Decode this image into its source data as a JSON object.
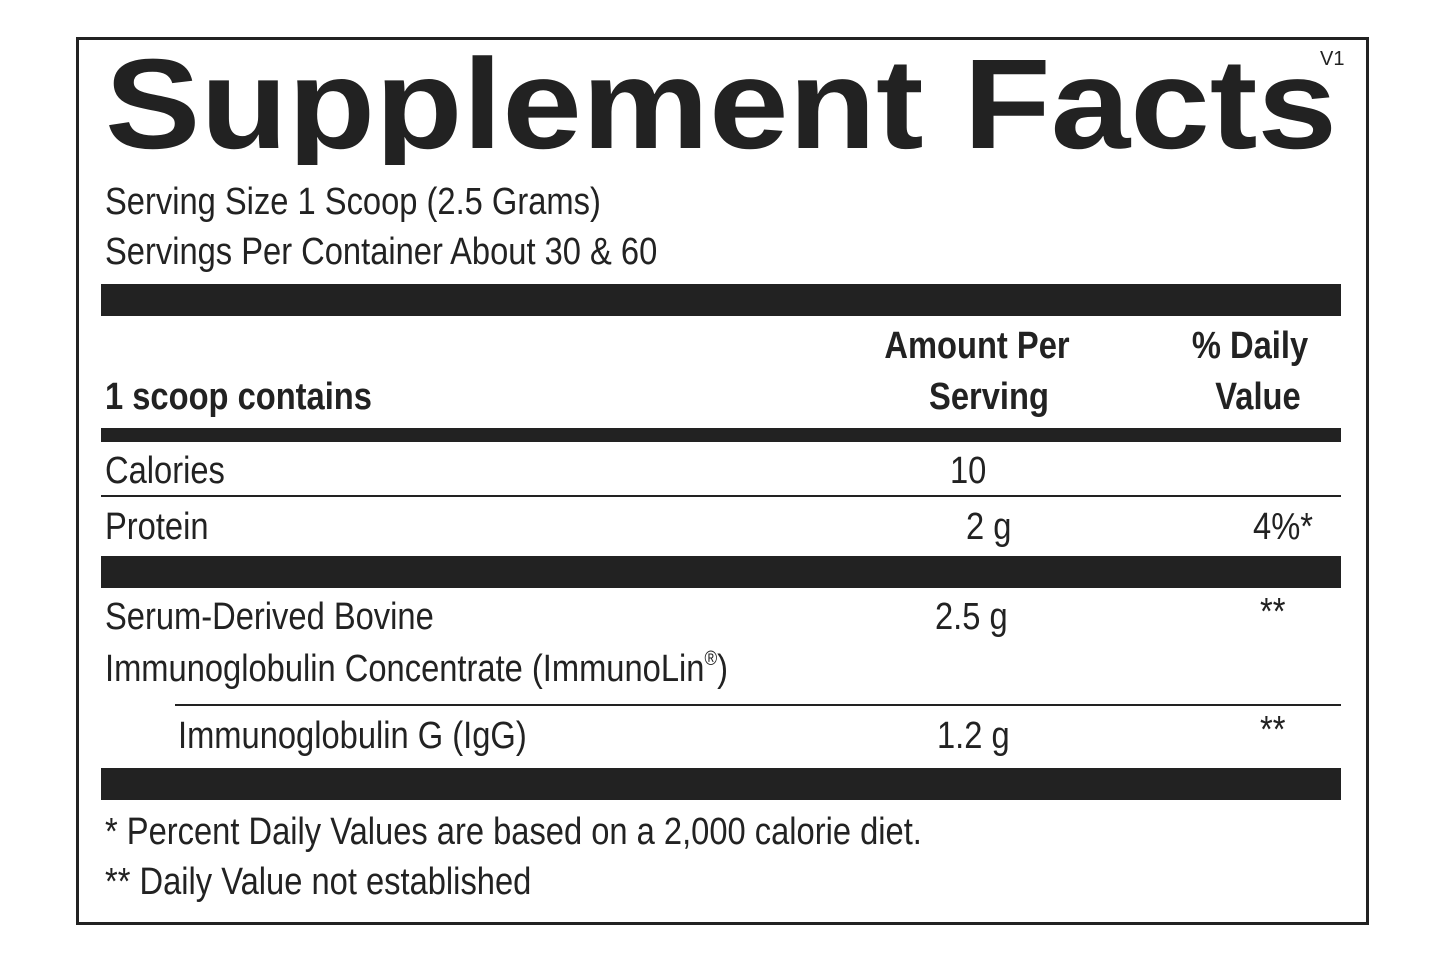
{
  "title": "Supplement Facts",
  "version": "V1",
  "serving_size": "Serving Size 1 Scoop (2.5 Grams)",
  "servings_per_container": "Servings Per Container About 30 & 60",
  "header": {
    "contains": "1 scoop contains",
    "amount_line1": "Amount Per",
    "amount_line2": "Serving",
    "dv_line1": "% Daily",
    "dv_line2": "Value"
  },
  "rows": [
    {
      "name": "Calories",
      "amount": "10",
      "dv": ""
    },
    {
      "name": "Protein",
      "amount": "2 g",
      "dv": "4%*"
    },
    {
      "name_line1": "Serum-Derived Bovine",
      "name_line2": "Immunoglobulin Concentrate (ImmunoLin",
      "trademark": "®",
      "name_line2_end": ")",
      "amount": "2.5 g",
      "dv": "**"
    },
    {
      "name": "Immunoglobulin G (IgG)",
      "amount": "1.2 g",
      "dv": "**"
    }
  ],
  "footnotes": [
    "* Percent Daily Values are based on a 2,000 calorie diet.",
    "** Daily Value not established"
  ]
}
